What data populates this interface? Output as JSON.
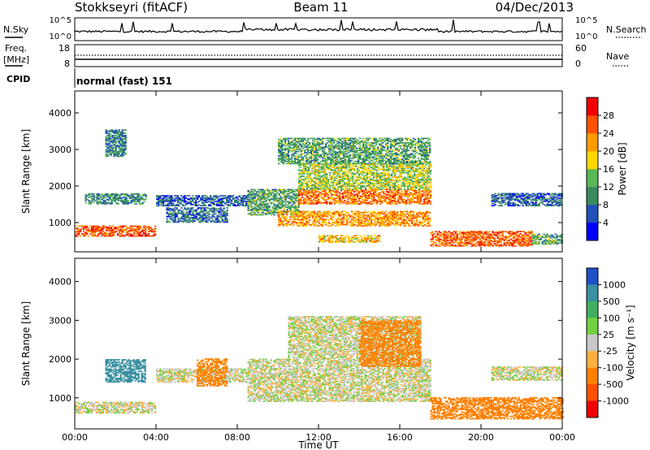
{
  "header": {
    "station": "Stokkseyri (fitACF)",
    "beam": "Beam 11",
    "date": "04/Dec/2013"
  },
  "noise_panel": {
    "left_label": "N.Sky",
    "right_label": "N.Search",
    "ticks_left": [
      "10^5",
      "10^0"
    ],
    "ticks_right": [
      "10^5",
      "10^0"
    ]
  },
  "freq_panel": {
    "left_label_1": "Freq.",
    "left_label_2": "[MHz]",
    "right_label": "Nave",
    "ticks_left": [
      "18",
      "8"
    ],
    "ticks_right": [
      "60",
      "0"
    ]
  },
  "cpid": {
    "label": "CPID",
    "value": "normal (fast) 151"
  },
  "colors": {
    "power": [
      "#0000ff",
      "#2050b8",
      "#3a8a60",
      "#58b858",
      "#ffd700",
      "#ff9a00",
      "#ff5000",
      "#ee0000"
    ],
    "velocity": [
      "#2050c8",
      "#3a90a0",
      "#40b060",
      "#70d040",
      "#c8c8c8",
      "#ffb040",
      "#ff8000",
      "#ff5000",
      "#ee0000"
    ]
  },
  "chart_data": [
    {
      "type": "heatmap",
      "name": "power",
      "ylabel": "Slant Range [km]",
      "yticks": [
        "1000",
        "2000",
        "3000",
        "4000"
      ],
      "ylim": [
        200,
        4600
      ],
      "xlim": [
        0,
        24
      ],
      "colorbar_label": "Power [dB]",
      "colorbar_ticks": [
        "4",
        "8",
        "12",
        "16",
        "20",
        "24",
        "28"
      ],
      "colorbar_range": [
        0,
        32
      ],
      "regions": [
        {
          "t0": 0.0,
          "t1": 4.0,
          "r0": 620,
          "r1": 900,
          "v": 26
        },
        {
          "t0": 0.5,
          "t1": 3.5,
          "r0": 1500,
          "r1": 1800,
          "v": 10
        },
        {
          "t0": 1.5,
          "t1": 2.5,
          "r0": 2800,
          "r1": 3550,
          "v": 9
        },
        {
          "t0": 4.0,
          "t1": 8.5,
          "r0": 1450,
          "r1": 1750,
          "v": 7
        },
        {
          "t0": 4.5,
          "t1": 7.5,
          "r0": 1000,
          "r1": 1400,
          "v": 8
        },
        {
          "t0": 8.5,
          "t1": 11.0,
          "r0": 1200,
          "r1": 1900,
          "v": 12
        },
        {
          "t0": 10.0,
          "t1": 17.5,
          "r0": 900,
          "r1": 1300,
          "v": 22
        },
        {
          "t0": 11.0,
          "t1": 17.5,
          "r0": 1500,
          "r1": 1900,
          "v": 24
        },
        {
          "t0": 11.0,
          "t1": 17.5,
          "r0": 1900,
          "r1": 2600,
          "v": 16
        },
        {
          "t0": 10.0,
          "t1": 17.5,
          "r0": 2600,
          "r1": 3300,
          "v": 12
        },
        {
          "t0": 12.0,
          "t1": 15.0,
          "r0": 450,
          "r1": 650,
          "v": 20
        },
        {
          "t0": 17.5,
          "t1": 22.5,
          "r0": 350,
          "r1": 750,
          "v": 25
        },
        {
          "t0": 22.5,
          "t1": 24.0,
          "r0": 400,
          "r1": 700,
          "v": 12
        },
        {
          "t0": 20.5,
          "t1": 24.0,
          "r0": 1450,
          "r1": 1800,
          "v": 7
        }
      ]
    },
    {
      "type": "heatmap",
      "name": "velocity",
      "ylabel": "Slant Range [km]",
      "yticks": [
        "1000",
        "2000",
        "3000",
        "4000"
      ],
      "ylim": [
        200,
        4600
      ],
      "xlim": [
        0,
        24
      ],
      "xticks": [
        "00:00",
        "04:00",
        "08:00",
        "12:00",
        "16:00",
        "20:00",
        "00:00"
      ],
      "xlabel": "Time UT",
      "colorbar_label": "Velocity [m s⁻¹]",
      "colorbar_ticks": [
        "1000",
        "500",
        "100",
        "25",
        "-25",
        "-100",
        "-500",
        "-1000"
      ],
      "regions": [
        {
          "t0": 0.0,
          "t1": 4.0,
          "r0": 600,
          "r1": 900,
          "v": 0
        },
        {
          "t0": 4.0,
          "t1": 8.5,
          "r0": 1400,
          "r1": 1750,
          "v": 0
        },
        {
          "t0": 8.5,
          "t1": 17.5,
          "r0": 900,
          "r1": 2000,
          "v": 0
        },
        {
          "t0": 10.5,
          "t1": 17.0,
          "r0": 2000,
          "r1": 3100,
          "v": 0
        },
        {
          "t0": 1.5,
          "t1": 3.5,
          "r0": 1400,
          "r1": 2000,
          "v": 300
        },
        {
          "t0": 6.0,
          "t1": 7.5,
          "r0": 1300,
          "r1": 2000,
          "v": -150
        },
        {
          "t0": 14.0,
          "t1": 17.0,
          "r0": 1800,
          "r1": 3000,
          "v": -150
        },
        {
          "t0": 17.5,
          "t1": 24.0,
          "r0": 450,
          "r1": 1000,
          "v": -350
        },
        {
          "t0": 20.5,
          "t1": 24.0,
          "r0": 1450,
          "r1": 1800,
          "v": 0
        }
      ]
    }
  ]
}
